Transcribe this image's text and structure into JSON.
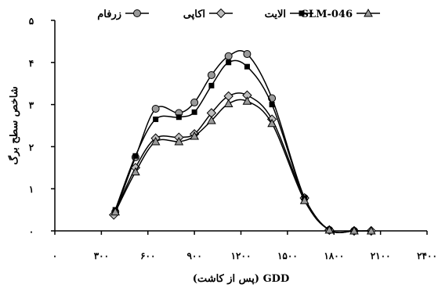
{
  "chart_data": {
    "type": "line",
    "title": "",
    "xlabel": "GDD (پس از کاشت)",
    "ylabel": "شاخص سطح برگ",
    "xlim": [
      0,
      2400
    ],
    "ylim": [
      0,
      5
    ],
    "x_tick_labels": [
      "۰",
      "۳۰۰",
      "۶۰۰",
      "۹۰۰",
      "۱۲۰۰",
      "۱۵۰۰",
      "۱۸۰۰",
      "۲۱۰۰",
      "۲۴۰۰"
    ],
    "y_tick_labels": [
      "۰",
      "۱",
      "۲",
      "۳",
      "۴",
      "۵"
    ],
    "legend_position": "top",
    "grid": false,
    "series": [
      {
        "name": "زرفام",
        "marker": "circle",
        "color": "#9a9a9a",
        "x": [
          390,
          520,
          650,
          800,
          900,
          1010,
          1120,
          1240,
          1400,
          1610,
          1770,
          1930
        ],
        "y": [
          0.45,
          1.75,
          2.9,
          2.8,
          3.05,
          3.7,
          4.15,
          4.2,
          3.15,
          0.78,
          0.02,
          0
        ]
      },
      {
        "name": "اکاپی",
        "marker": "diamond",
        "color": "#bdbdbd",
        "x": [
          380,
          520,
          650,
          800,
          900,
          1010,
          1120,
          1240,
          1400,
          1610,
          1770,
          1930,
          2040
        ],
        "y": [
          0.38,
          1.5,
          2.2,
          2.22,
          2.3,
          2.8,
          3.2,
          3.22,
          2.65,
          0.78,
          0.02,
          0,
          0
        ]
      },
      {
        "name": "الایت",
        "marker": "square",
        "color": "#000000",
        "x": [
          390,
          520,
          650,
          800,
          900,
          1010,
          1120,
          1240,
          1400,
          1610,
          1770,
          1930
        ],
        "y": [
          0.5,
          1.78,
          2.65,
          2.7,
          2.82,
          3.45,
          4.0,
          3.9,
          3.0,
          0.78,
          0.02,
          0
        ]
      },
      {
        "name": "SLM-046",
        "marker": "triangle",
        "color": "#9a9a9a",
        "x": [
          390,
          520,
          650,
          800,
          900,
          1010,
          1120,
          1240,
          1400,
          1610,
          1770,
          1930,
          2040
        ],
        "y": [
          0.45,
          1.4,
          2.12,
          2.12,
          2.25,
          2.62,
          3.02,
          3.08,
          2.55,
          0.72,
          0.02,
          0,
          0
        ]
      }
    ]
  }
}
